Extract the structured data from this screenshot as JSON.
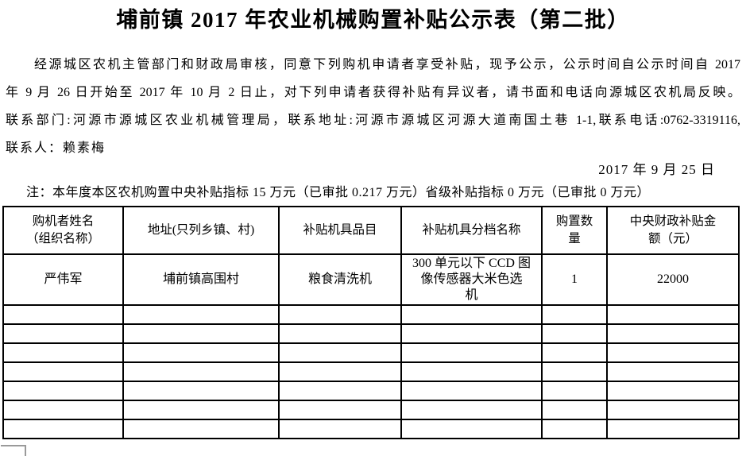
{
  "page": {
    "title": "埔前镇 2017 年农业机械购置补贴公示表（第二批）",
    "paragraph_lines": [
      "经源城区农机主管部门和财政局审核，同意下列购机申请者享受补贴，现予公示，公示时间自公示时间自 2017",
      "年 9 月 26 日开始至 2017 年 10 月 2 日止，对下列申请者获得补贴有异议者，请书面和电话向源城区农机局反映。",
      "联系部门:河源市源城区农业机械管理局，联系地址:河源市源城区河源大道南国土巷 1-1,联系电话:0762-3319116,",
      "联系人：赖素梅"
    ],
    "date": "2017 年 9 月 25 日",
    "note": "注：本年度本区农机购置中央补贴指标 15 万元（已审批 0.217 万元）省级补贴指标 0 万元（已审批 0 万元）"
  },
  "table": {
    "headers": [
      "购机者姓名\n（组织名称）",
      "地址(只列乡镇、村)",
      "补贴机具品目",
      "补贴机具分档名称",
      "购置数\n量",
      "中央财政补贴金\n额（元）"
    ],
    "rows": [
      [
        "严伟军",
        "埔前镇高围村",
        "粮食清洗机",
        "300 单元以下 CCD 图\n像传感器大米色选\n机",
        "1",
        "22000"
      ]
    ],
    "empty_row_count": 7
  },
  "colors": {
    "text": "#000000",
    "table_border": "#000000",
    "background": "#ffffff",
    "artifact_gray": "#9a9a9a"
  }
}
